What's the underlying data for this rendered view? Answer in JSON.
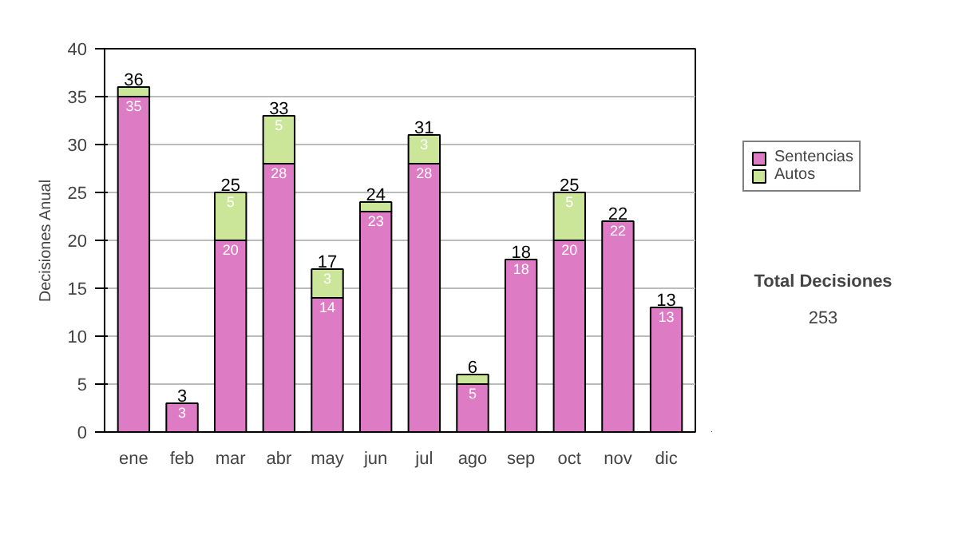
{
  "chart_data": {
    "type": "bar",
    "stacked": true,
    "ylabel": "Decisiones Anual",
    "categories": [
      "ene",
      "feb",
      "mar",
      "abr",
      "may",
      "jun",
      "jul",
      "ago",
      "sep",
      "oct",
      "nov",
      "dic"
    ],
    "series": [
      {
        "name": "Sentencias",
        "color": "#dd7bc4",
        "values": [
          35,
          3,
          20,
          28,
          14,
          23,
          28,
          5,
          18,
          20,
          22,
          13
        ],
        "value_labels": [
          "35",
          "3",
          "20",
          "28",
          "14",
          "23",
          "28",
          "5",
          "18",
          "20",
          "22",
          "13"
        ]
      },
      {
        "name": "Autos",
        "color": "#cce699",
        "values": [
          1,
          0,
          5,
          5,
          3,
          1,
          3,
          1,
          0,
          5,
          0,
          0
        ],
        "value_labels": [
          null,
          null,
          "5",
          "5",
          "3",
          null,
          "3",
          null,
          null,
          "5",
          null,
          null
        ]
      }
    ],
    "totals": [
      "36",
      "3",
      "25",
      "33",
      "17",
      "24",
      "31",
      "6",
      "18",
      "25",
      "22",
      "13"
    ],
    "ylim": [
      0,
      40
    ],
    "yticks": [
      0,
      5,
      10,
      15,
      20,
      25,
      30,
      35,
      40
    ],
    "grid": "y",
    "legend": "right",
    "annotations": [
      "Total Decisiones",
      "253"
    ]
  }
}
